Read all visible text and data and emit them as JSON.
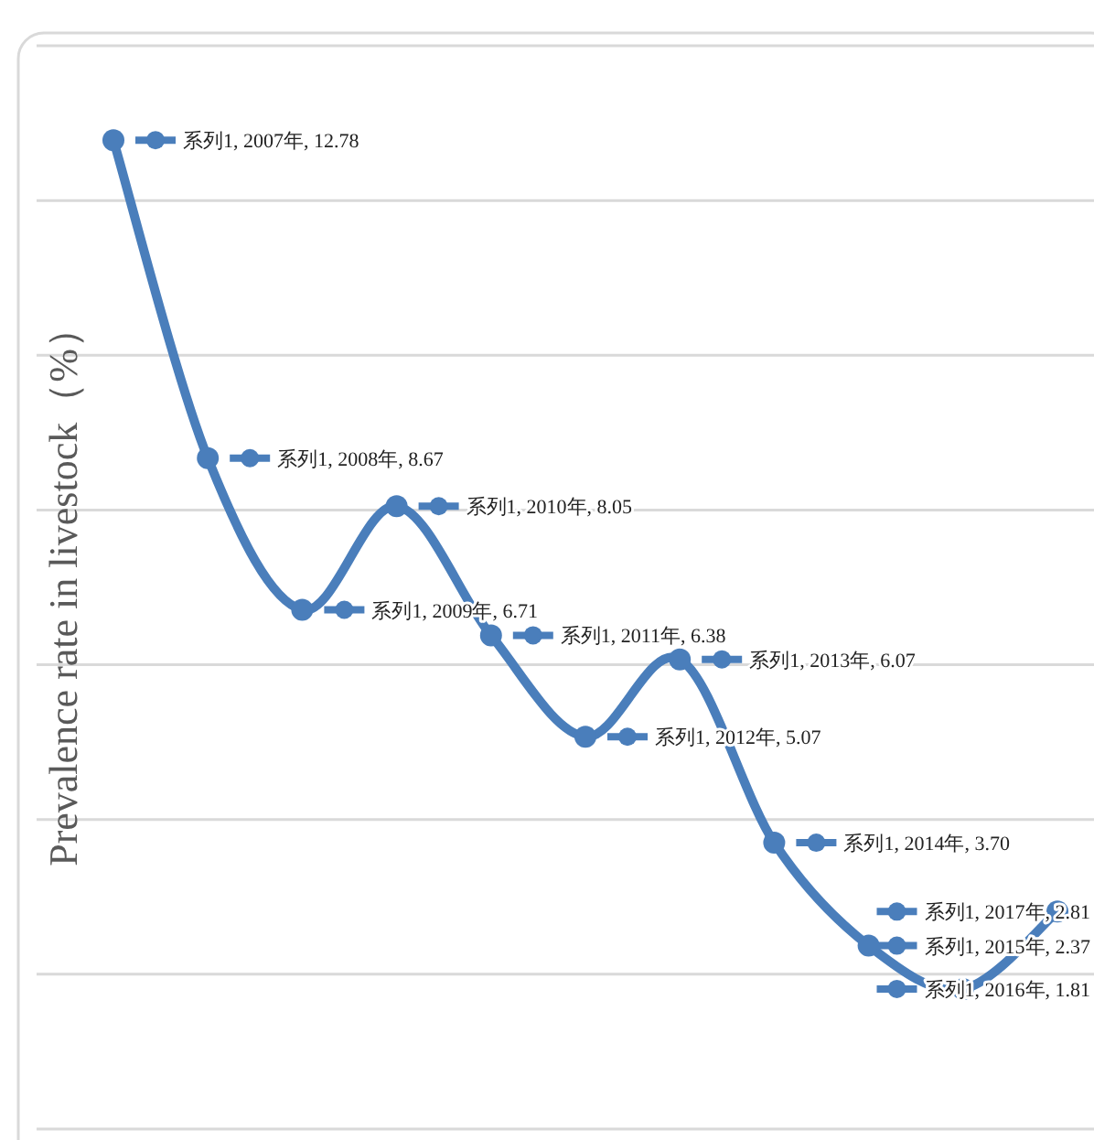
{
  "chart_data": {
    "type": "line",
    "ylabel": "Prevalence rate in livestock（%）",
    "categories": [
      null,
      null,
      null,
      null,
      null,
      null,
      null,
      null,
      null,
      null,
      null
    ],
    "series": [
      {
        "color": "#4a7ebb",
        "values": [
          12.78,
          8.67,
          6.71,
          8.05,
          6.38,
          5.07,
          6.07,
          3.7,
          2.37,
          1.81,
          2.81
        ],
        "value_labels": [
          "系列1, 2007年, 12.78",
          "系列1, 2008年, 8.67",
          "系列1, 2009年, 6.71",
          "系列1, 2010年, 8.05",
          "系列1, 2011年, 6.38",
          "系列1, 2012年, 5.07",
          "系列1, 2013年, 6.07",
          "系列1, 2014年, 3.70",
          "系列1, 2015年, 2.37",
          "系列1, 2016年, 1.81",
          "系列1, 2017年, 2.81"
        ]
      }
    ],
    "ylim": [
      0,
      14
    ],
    "yticks": [
      {
        "value": 0,
        "label": null
      },
      {
        "value": 2,
        "label": null
      },
      {
        "value": 4,
        "label": null
      },
      {
        "value": 6,
        "label": null
      },
      {
        "value": 8,
        "label": null
      },
      {
        "value": 10,
        "label": null
      },
      {
        "value": 12,
        "label": null
      },
      {
        "value": 14,
        "label": null
      }
    ],
    "grid": "y",
    "marker": "circle",
    "line_style": "solid"
  }
}
